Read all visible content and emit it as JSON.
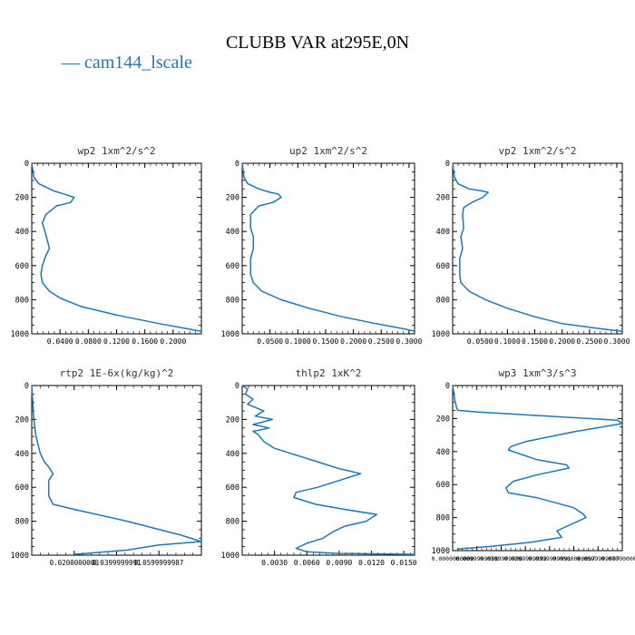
{
  "title": "CLUBB VAR at295E,0N",
  "legend": {
    "label": "cam144_lscale",
    "color": "#1f77b4"
  },
  "chart_data": [
    {
      "type": "line",
      "title": "wp2  1xm^2/s^2",
      "xlim": [
        0.0,
        0.24
      ],
      "ylim": [
        1000,
        0
      ],
      "xticks": [
        0.04,
        0.08,
        0.12,
        0.16,
        0.2
      ],
      "xticklabels": [
        "0.0400",
        "0.0800",
        "0.1200",
        "0.1600",
        "0.2000"
      ],
      "yticks": [
        0,
        200,
        400,
        600,
        800,
        1000
      ],
      "yticklabels": [
        "0",
        "200",
        "400",
        "600",
        "800",
        "1000"
      ],
      "series": [
        {
          "x": [
            0.0,
            0.003,
            0.01,
            0.03,
            0.045,
            0.06,
            0.055,
            0.035,
            0.02,
            0.015,
            0.02,
            0.025,
            0.02,
            0.015,
            0.013,
            0.015,
            0.025,
            0.04,
            0.07,
            0.12,
            0.18,
            0.22,
            0.24
          ],
          "y": [
            0,
            80,
            120,
            160,
            180,
            200,
            230,
            250,
            300,
            350,
            420,
            500,
            540,
            600,
            650,
            700,
            750,
            790,
            840,
            890,
            940,
            970,
            985
          ]
        }
      ]
    },
    {
      "type": "line",
      "title": "up2  1xm^2/s^2",
      "xlim": [
        0.0,
        0.31
      ],
      "ylim": [
        1000,
        0
      ],
      "xticks": [
        0.05,
        0.1,
        0.15,
        0.2,
        0.25,
        0.3
      ],
      "xticklabels": [
        "0.0500",
        "0.1000",
        "0.1500",
        "0.2000",
        "0.2500",
        "0.3000"
      ],
      "yticks": [
        0,
        200,
        400,
        600,
        800,
        1000
      ],
      "yticklabels": [
        "0",
        "200",
        "400",
        "600",
        "800",
        "1000"
      ],
      "series": [
        {
          "x": [
            0.0,
            0.003,
            0.01,
            0.03,
            0.05,
            0.065,
            0.07,
            0.055,
            0.03,
            0.015,
            0.015,
            0.02,
            0.02,
            0.015,
            0.015,
            0.02,
            0.035,
            0.07,
            0.12,
            0.18,
            0.24,
            0.29,
            0.31
          ],
          "y": [
            0,
            80,
            120,
            150,
            170,
            180,
            200,
            230,
            250,
            300,
            380,
            430,
            500,
            560,
            650,
            700,
            750,
            800,
            850,
            900,
            940,
            970,
            985
          ]
        }
      ]
    },
    {
      "type": "line",
      "title": "vp2  1xm^2/s^2",
      "xlim": [
        0.0,
        0.31
      ],
      "ylim": [
        1000,
        0
      ],
      "xticks": [
        0.05,
        0.1,
        0.15,
        0.2,
        0.25,
        0.3
      ],
      "xticklabels": [
        "0.0500",
        "0.1000",
        "0.1500",
        "0.2000",
        "0.2500",
        "0.3000"
      ],
      "yticks": [
        0,
        200,
        400,
        600,
        800,
        1000
      ],
      "yticklabels": [
        "0",
        "200",
        "400",
        "600",
        "800",
        "1000"
      ],
      "series": [
        {
          "x": [
            0.0,
            0.003,
            0.01,
            0.03,
            0.05,
            0.065,
            0.055,
            0.035,
            0.02,
            0.018,
            0.02,
            0.015,
            0.018,
            0.013,
            0.013,
            0.015,
            0.03,
            0.06,
            0.1,
            0.15,
            0.2,
            0.27,
            0.31
          ],
          "y": [
            0,
            80,
            120,
            150,
            160,
            170,
            200,
            230,
            260,
            300,
            380,
            430,
            500,
            560,
            650,
            700,
            750,
            800,
            850,
            900,
            940,
            970,
            985
          ]
        }
      ]
    },
    {
      "type": "line",
      "title": "rtp2  1E-6x(kg/kg)^2",
      "xlim": [
        0.0,
        0.08
      ],
      "ylim": [
        1000,
        0
      ],
      "xticks": [
        0.02,
        0.04,
        0.06
      ],
      "xticklabels": [
        "0.0200000000",
        "0.0399999991",
        "0.0599999987"
      ],
      "yticks": [
        0,
        200,
        400,
        600,
        800,
        1000
      ],
      "yticklabels": [
        "0",
        "200",
        "400",
        "600",
        "800",
        "1000"
      ],
      "series": [
        {
          "x": [
            0.0,
            0.001,
            0.002,
            0.004,
            0.006,
            0.008,
            0.01,
            0.008,
            0.008,
            0.01,
            0.02,
            0.045,
            0.07,
            0.08,
            0.06,
            0.045,
            0.02
          ],
          "y": [
            0,
            200,
            300,
            400,
            450,
            480,
            520,
            560,
            650,
            700,
            730,
            800,
            880,
            920,
            940,
            970,
            995
          ]
        }
      ]
    },
    {
      "type": "line",
      "title": "thlp2  1xK^2",
      "xlim": [
        0.0,
        0.016
      ],
      "ylim": [
        1000,
        0
      ],
      "xticks": [
        0.003,
        0.006,
        0.009,
        0.012,
        0.015
      ],
      "xticklabels": [
        "0.0030",
        "0.0060",
        "0.0090",
        "0.0120",
        "0.0150"
      ],
      "yticks": [
        0,
        200,
        400,
        600,
        800,
        1000
      ],
      "yticklabels": [
        "0",
        "200",
        "400",
        "600",
        "800",
        "1000"
      ],
      "series": [
        {
          "x": [
            0.0,
            0.0005,
            0.0003,
            0.001,
            0.0005,
            0.002,
            0.0012,
            0.0028,
            0.001,
            0.0025,
            0.001,
            0.0015,
            0.002,
            0.003,
            0.005,
            0.007,
            0.009,
            0.011,
            0.009,
            0.007,
            0.005,
            0.0048,
            0.0068,
            0.0095,
            0.0125,
            0.0115,
            0.0095,
            0.0085,
            0.0075,
            0.006,
            0.005,
            0.006,
            0.009,
            0.016
          ],
          "y": [
            0,
            20,
            50,
            80,
            110,
            150,
            180,
            200,
            230,
            250,
            270,
            290,
            330,
            370,
            410,
            450,
            490,
            520,
            560,
            600,
            630,
            660,
            700,
            730,
            760,
            800,
            830,
            860,
            900,
            930,
            960,
            980,
            990,
            995
          ]
        }
      ]
    },
    {
      "type": "line",
      "title": "wp3  1xm^3/s^3",
      "xlim": [
        0.0,
        0.07
      ],
      "ylim": [
        1000,
        0
      ],
      "xticks": [
        0.0,
        0.01,
        0.02,
        0.03,
        0.04,
        0.05,
        0.06,
        0.07
      ],
      "xticklabels": [
        "0.0000000000",
        "0.0099999998",
        "0.0199999996",
        "0.0299999993",
        "0.0399999991",
        "0.0500000007",
        "0.0599999987",
        "0.0700000003"
      ],
      "yticks": [
        0,
        200,
        400,
        600,
        800,
        1000
      ],
      "yticklabels": [
        "0",
        "200",
        "400",
        "600",
        "800",
        "1000"
      ],
      "series": [
        {
          "x": [
            0.0,
            0.001,
            0.002,
            0.01,
            0.068,
            0.07,
            0.05,
            0.03,
            0.024,
            0.023,
            0.035,
            0.047,
            0.048,
            0.035,
            0.025,
            0.022,
            0.023,
            0.035,
            0.05,
            0.054,
            0.055,
            0.046,
            0.043,
            0.045,
            0.032,
            0.015,
            0.002
          ],
          "y": [
            0,
            100,
            150,
            160,
            210,
            230,
            280,
            340,
            370,
            390,
            450,
            480,
            500,
            540,
            580,
            620,
            650,
            680,
            740,
            780,
            800,
            860,
            880,
            920,
            950,
            975,
            990
          ]
        }
      ]
    }
  ]
}
